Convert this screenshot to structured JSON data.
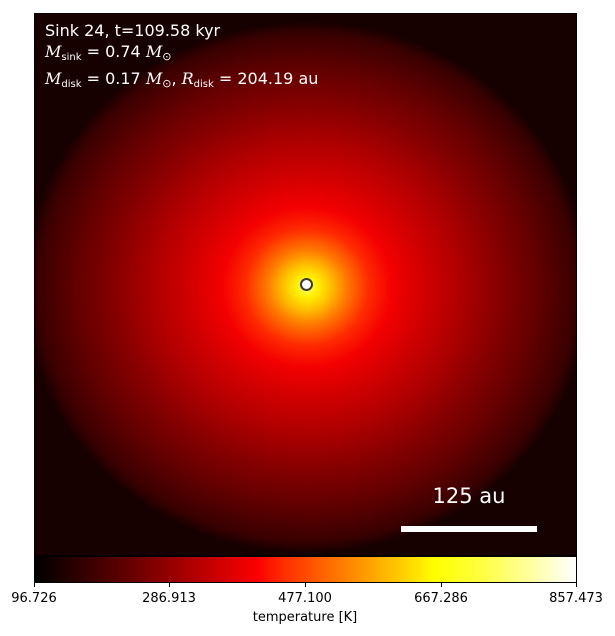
{
  "annotation": {
    "line1": "Sink 24, t=109.58 kyr",
    "m_sink_symbol": "M",
    "m_sink_subscript": "sink",
    "m_sink_value": " = 0.74 ",
    "m_disk_symbol": "M",
    "m_disk_subscript": "disk",
    "m_disk_value": " = 0.17 ",
    "r_disk_symbol": "R",
    "r_disk_subscript": "disk",
    "r_disk_value": " = 204.19 au",
    "solar_mass_symbol": "M",
    "sun_symbol": "⊙",
    "separator": ", "
  },
  "scale_bar": {
    "label": "125 au"
  },
  "colorbar": {
    "title": "temperature [K]",
    "ticks": [
      "96.726",
      "286.913",
      "477.100",
      "667.286",
      "857.473"
    ],
    "colormap": "hot"
  },
  "colors": {
    "text": "#ffffff",
    "sink_marker_edge": "#3a3a3a",
    "sink_marker_fill": "#ffffff"
  }
}
